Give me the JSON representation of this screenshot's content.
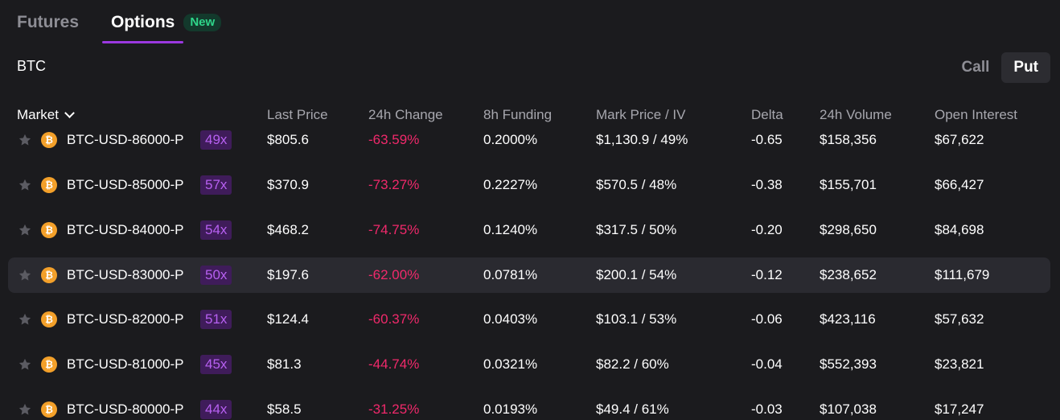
{
  "tabs": {
    "futures": "Futures",
    "options": "Options",
    "new_badge": "New"
  },
  "asset": "BTC",
  "toggle": {
    "call": "Call",
    "put": "Put"
  },
  "table": {
    "headers": {
      "market": "Market",
      "last_price": "Last Price",
      "change_24h": "24h Change",
      "funding_8h": "8h Funding",
      "mark_iv": "Mark Price / IV",
      "delta": "Delta",
      "volume_24h": "24h Volume",
      "open_interest": "Open Interest"
    },
    "rows": [
      {
        "market": "BTC-USD-86000-P",
        "leverage": "49x",
        "last_price": "$805.6",
        "change": "-63.59%",
        "funding": "0.2000%",
        "mark_iv": "$1,130.9 / 49%",
        "delta": "-0.65",
        "volume": "$158,356",
        "open_interest": "$67,622"
      },
      {
        "market": "BTC-USD-85000-P",
        "leverage": "57x",
        "last_price": "$370.9",
        "change": "-73.27%",
        "funding": "0.2227%",
        "mark_iv": "$570.5 / 48%",
        "delta": "-0.38",
        "volume": "$155,701",
        "open_interest": "$66,427"
      },
      {
        "market": "BTC-USD-84000-P",
        "leverage": "54x",
        "last_price": "$468.2",
        "change": "-74.75%",
        "funding": "0.1240%",
        "mark_iv": "$317.5 / 50%",
        "delta": "-0.20",
        "volume": "$298,650",
        "open_interest": "$84,698"
      },
      {
        "market": "BTC-USD-83000-P",
        "leverage": "50x",
        "last_price": "$197.6",
        "change": "-62.00%",
        "funding": "0.0781%",
        "mark_iv": "$200.1 / 54%",
        "delta": "-0.12",
        "volume": "$238,652",
        "open_interest": "$111,679"
      },
      {
        "market": "BTC-USD-82000-P",
        "leverage": "51x",
        "last_price": "$124.4",
        "change": "-60.37%",
        "funding": "0.0403%",
        "mark_iv": "$103.1 / 53%",
        "delta": "-0.06",
        "volume": "$423,116",
        "open_interest": "$57,632"
      },
      {
        "market": "BTC-USD-81000-P",
        "leverage": "45x",
        "last_price": "$81.3",
        "change": "-44.74%",
        "funding": "0.0321%",
        "mark_iv": "$82.2 / 60%",
        "delta": "-0.04",
        "volume": "$552,393",
        "open_interest": "$23,821"
      },
      {
        "market": "BTC-USD-80000-P",
        "leverage": "44x",
        "last_price": "$58.5",
        "change": "-31.25%",
        "funding": "0.0193%",
        "mark_iv": "$49.4 / 61%",
        "delta": "-0.03",
        "volume": "$107,038",
        "open_interest": "$17,247"
      }
    ]
  },
  "colors": {
    "background": "#1b1b1e",
    "accent_purple": "#9b38e0",
    "negative": "#f0296b",
    "badge_green": "#2fd58a",
    "coin_orange": "#f3a02a"
  },
  "icons": {
    "star": "star-icon",
    "coin": "bitcoin-icon",
    "coin_glyph": "₿",
    "chevron": "chevron-down-icon"
  }
}
